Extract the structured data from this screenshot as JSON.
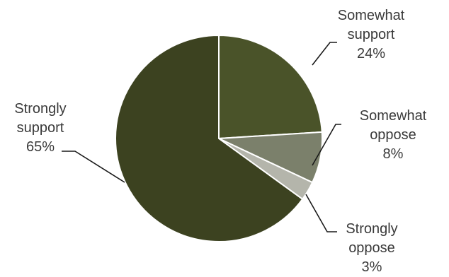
{
  "chart_data": {
    "type": "pie",
    "slices": [
      {
        "label_lines": [
          "Somewhat",
          "support"
        ],
        "value": 24,
        "value_text": "24%",
        "color": "#4a5329"
      },
      {
        "label_lines": [
          "Somewhat",
          "oppose"
        ],
        "value": 8,
        "value_text": "8%",
        "color": "#7b806b"
      },
      {
        "label_lines": [
          "Strongly",
          "oppose"
        ],
        "value": 3,
        "value_text": "3%",
        "color": "#b4b5ab"
      },
      {
        "label_lines": [
          "Strongly",
          "support"
        ],
        "value": 65,
        "value_text": "65%",
        "color": "#3c4220"
      }
    ],
    "start_angle_deg": 0,
    "direction": "clockwise"
  }
}
